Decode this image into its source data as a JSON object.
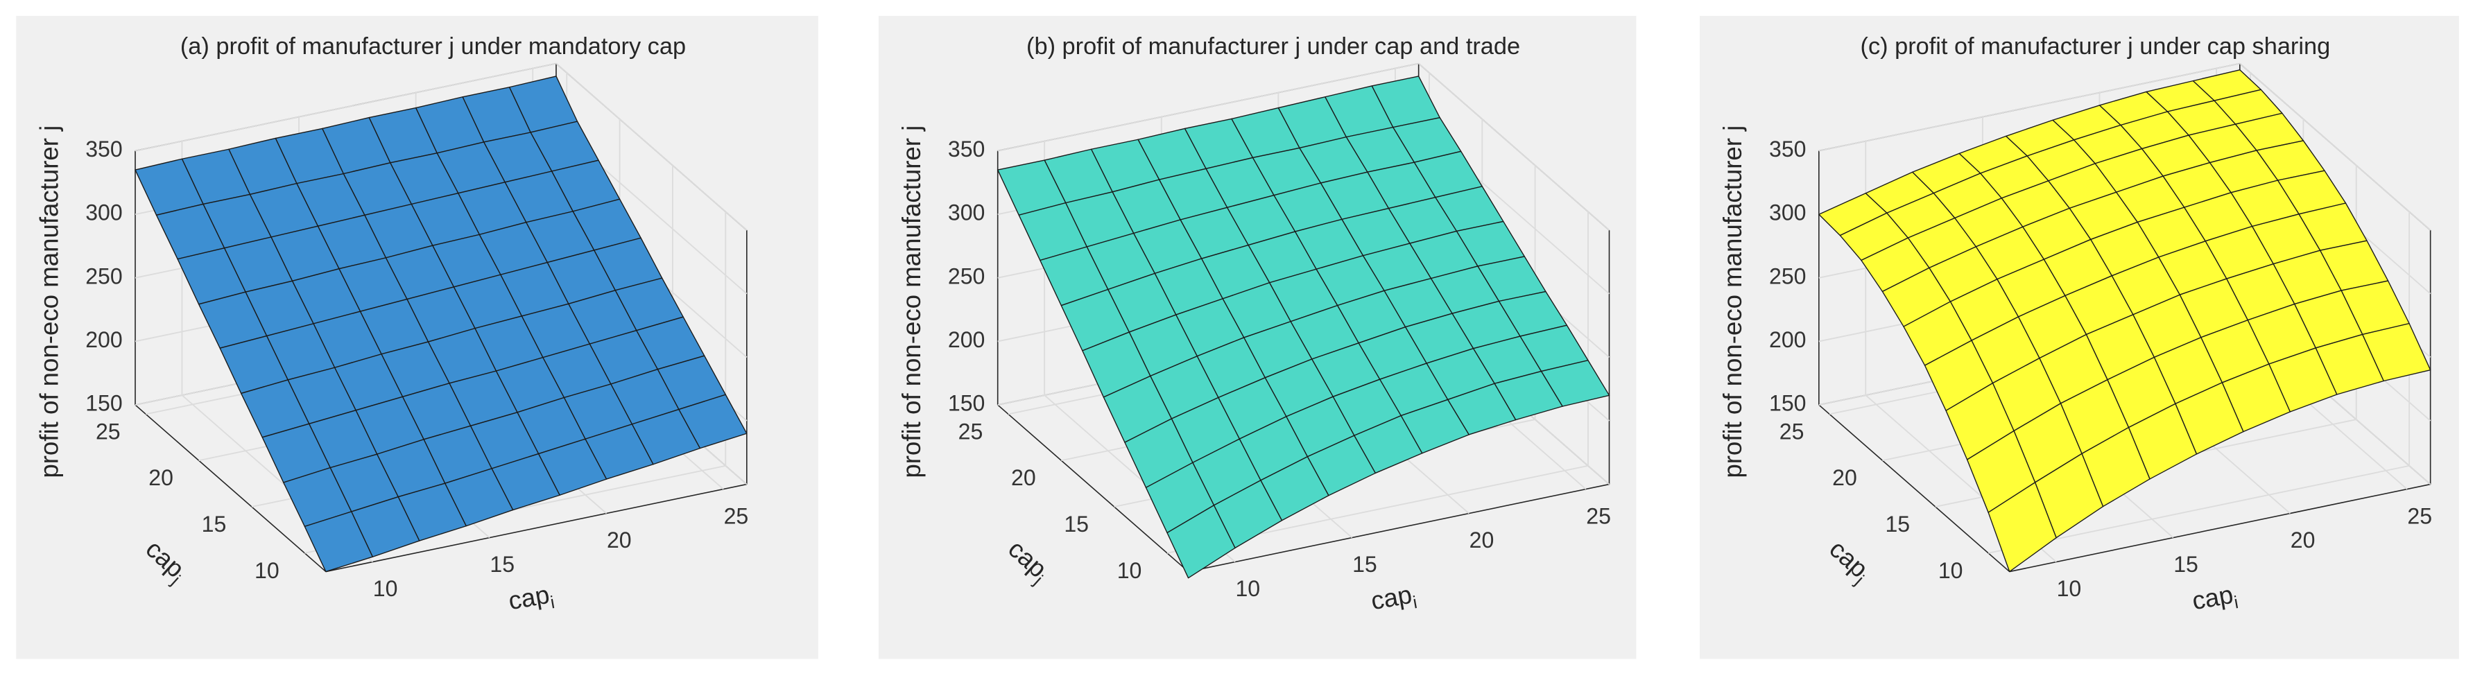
{
  "chart_data": [
    {
      "type": "surface",
      "title": "(a) profit of manufacturer j  under mandatory cap",
      "color": "#3d8fd2",
      "xlabel": {
        "base": "cap",
        "subscript": "i"
      },
      "ylabel": {
        "base": "cap",
        "subscript": "j"
      },
      "zlabel": "profit of non-eco manufacturer j",
      "x": [
        8,
        10,
        12,
        14,
        16,
        18,
        20,
        22,
        24,
        26
      ],
      "y": [
        8,
        10,
        12,
        14,
        16,
        18,
        20,
        22,
        24,
        26
      ],
      "values": [
        [
          150,
          154,
          159,
          163,
          168,
          172,
          177,
          181,
          186,
          190
        ],
        [
          171,
          175,
          179,
          182,
          186,
          190,
          194,
          198,
          202,
          206
        ],
        [
          191,
          195,
          198,
          202,
          205,
          208,
          212,
          215,
          219,
          222
        ],
        [
          212,
          215,
          218,
          221,
          224,
          226,
          229,
          232,
          235,
          238
        ],
        [
          232,
          235,
          237,
          240,
          242,
          245,
          247,
          249,
          252,
          254
        ],
        [
          253,
          255,
          257,
          259,
          261,
          263,
          265,
          267,
          269,
          271
        ],
        [
          273,
          275,
          276,
          278,
          279,
          281,
          282,
          284,
          285,
          287
        ],
        [
          294,
          295,
          296,
          297,
          298,
          299,
          300,
          301,
          302,
          303
        ],
        [
          314,
          315,
          315,
          316,
          316,
          317,
          317,
          318,
          318,
          319
        ],
        [
          335,
          336,
          336,
          337,
          337,
          338,
          338,
          339,
          339,
          340
        ]
      ],
      "xlim": [
        8,
        26
      ],
      "ylim": [
        8,
        26
      ],
      "zlim": [
        150,
        350
      ],
      "xticks": [
        10,
        15,
        20,
        25
      ],
      "yticks": [
        10,
        15,
        20,
        25
      ],
      "zticks": [
        150,
        200,
        250,
        300,
        350
      ],
      "grid": true
    },
    {
      "type": "surface",
      "title": "(b) profit of manufacturer j  under cap and trade",
      "color": "#4ed8c6",
      "xlabel": {
        "base": "cap",
        "subscript": "i"
      },
      "ylabel": {
        "base": "cap",
        "subscript": "j"
      },
      "zlabel": "profit of non-eco manufacturer j",
      "x": [
        8,
        10,
        12,
        14,
        16,
        18,
        20,
        22,
        24,
        26
      ],
      "y": [
        8,
        10,
        12,
        14,
        16,
        18,
        20,
        22,
        24,
        26
      ],
      "values": [
        [
          145,
          161,
          175,
          187,
          197,
          205,
          212,
          216,
          219,
          220
        ],
        [
          166,
          180,
          192,
          203,
          212,
          220,
          225,
          230,
          232,
          233
        ],
        [
          187,
          199,
          210,
          220,
          228,
          234,
          239,
          243,
          245,
          246
        ],
        [
          208,
          219,
          228,
          236,
          243,
          248,
          253,
          256,
          258,
          258
        ],
        [
          229,
          238,
          246,
          253,
          258,
          263,
          267,
          269,
          271,
          271
        ],
        [
          251,
          258,
          264,
          269,
          274,
          277,
          280,
          282,
          284,
          284
        ],
        [
          272,
          277,
          282,
          286,
          289,
          292,
          294,
          295,
          296,
          297
        ],
        [
          293,
          296,
          299,
          302,
          304,
          306,
          308,
          309,
          309,
          310
        ],
        [
          314,
          316,
          317,
          319,
          320,
          321,
          321,
          322,
          322,
          322
        ],
        [
          335,
          335,
          336,
          336,
          337,
          337,
          338,
          339,
          340,
          340
        ]
      ],
      "xlim": [
        8,
        26
      ],
      "ylim": [
        8,
        26
      ],
      "zlim": [
        150,
        350
      ],
      "xticks": [
        10,
        15,
        20,
        25
      ],
      "yticks": [
        10,
        15,
        20,
        25
      ],
      "zticks": [
        150,
        200,
        250,
        300,
        350
      ],
      "grid": true
    },
    {
      "type": "surface",
      "title": "(c) profit of manufacturer j  under cap sharing",
      "color": "#ffff38",
      "xlabel": {
        "base": "cap",
        "subscript": "i"
      },
      "ylabel": {
        "base": "cap",
        "subscript": "j"
      },
      "zlabel": "profit of non-eco manufacturer j",
      "x": [
        8,
        10,
        12,
        14,
        16,
        18,
        20,
        22,
        24,
        26
      ],
      "y": [
        8,
        10,
        12,
        14,
        16,
        18,
        20,
        22,
        24,
        26
      ],
      "values": [
        [
          150,
          169,
          186,
          200,
          212,
          222,
          230,
          236,
          239,
          240
        ],
        [
          182,
          198,
          213,
          226,
          237,
          246,
          253,
          258,
          261,
          262
        ],
        [
          209,
          224,
          238,
          249,
          259,
          267,
          273,
          278,
          281,
          281
        ],
        [
          233,
          247,
          259,
          270,
          278,
          286,
          291,
          295,
          298,
          298
        ],
        [
          254,
          266,
          277,
          286,
          294,
          301,
          306,
          310,
          312,
          313
        ],
        [
          270,
          282,
          292,
          300,
          308,
          314,
          318,
          322,
          324,
          324
        ],
        [
          283,
          294,
          303,
          311,
          318,
          323,
          328,
          331,
          333,
          333
        ],
        [
          293,
          303,
          311,
          319,
          325,
          331,
          335,
          338,
          339,
          340
        ],
        [
          298,
          308,
          316,
          324,
          330,
          335,
          339,
          342,
          343,
          344
        ],
        [
          300,
          309,
          318,
          325,
          331,
          336,
          340,
          343,
          344,
          345
        ]
      ],
      "xlim": [
        8,
        26
      ],
      "ylim": [
        8,
        26
      ],
      "zlim": [
        150,
        350
      ],
      "xticks": [
        10,
        15,
        20,
        25
      ],
      "yticks": [
        10,
        15,
        20,
        25
      ],
      "zticks": [
        150,
        200,
        250,
        300,
        350
      ],
      "grid": true
    }
  ]
}
